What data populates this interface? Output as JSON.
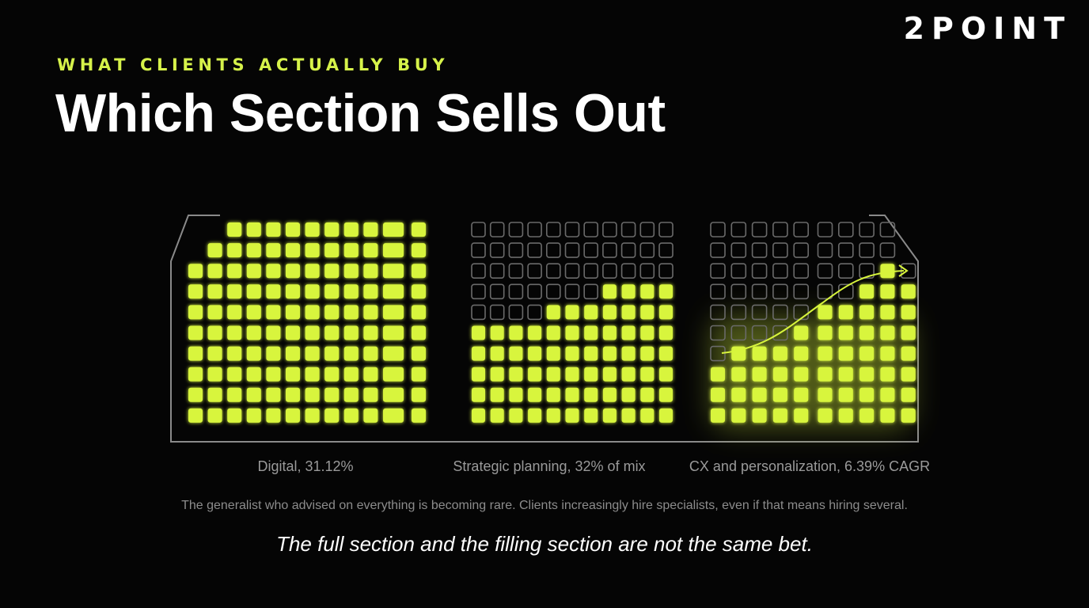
{
  "brand": "2POINT",
  "eyebrow": "WHAT CLIENTS ACTUALLY BUY",
  "title": "Which Section Sells Out",
  "accent_color": "#d8f53c",
  "empty_seat_color": "#6a6a6a",
  "sections": [
    {
      "label": "Digital, 31.12%",
      "grid": {
        "rows": 10,
        "cols": 12
      },
      "state": "full"
    },
    {
      "label": "Strategic planning, 32% of mix",
      "grid": {
        "rows": 10,
        "cols": 11
      },
      "state": "steady"
    },
    {
      "label": "CX and personalization, 6.39% CAGR",
      "grid": {
        "rows": 10,
        "cols": 10
      },
      "state": "filling",
      "trend": "rising"
    }
  ],
  "note": "The generalist who advised on everything is becoming rare. Clients increasingly hire specialists, even if that means hiring several.",
  "takeaway": "The full section and the filling section are not the same bet."
}
